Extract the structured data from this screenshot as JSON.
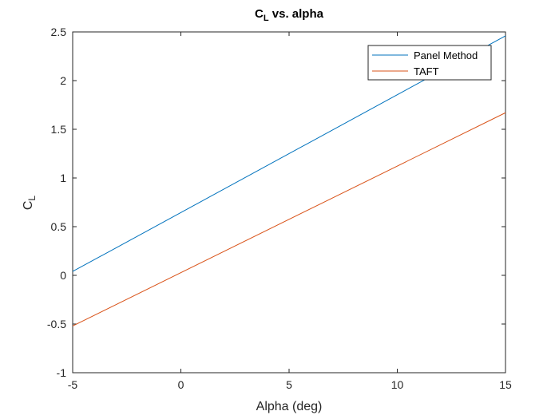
{
  "chart_data": {
    "type": "line",
    "title": {
      "main": "C",
      "sub": "L",
      "rest": " vs. alpha"
    },
    "xlabel": "Alpha (deg)",
    "ylabel": {
      "main": "C",
      "sub": "L"
    },
    "xlim": [
      -5,
      15
    ],
    "ylim": [
      -1,
      2.5
    ],
    "xticks": [
      -5,
      0,
      5,
      10,
      15
    ],
    "yticks": [
      -1,
      -0.5,
      0,
      0.5,
      1,
      1.5,
      2,
      2.5
    ],
    "xtick_labels": [
      "-5",
      "0",
      "5",
      "10",
      "15"
    ],
    "ytick_labels": [
      "-1",
      "-0.5",
      "0",
      "0.5",
      "1",
      "1.5",
      "2",
      "2.5"
    ],
    "grid": false,
    "legend_position": "top-right",
    "series": [
      {
        "name": "Panel Method",
        "color": "#0072BD",
        "x": [
          -5,
          15
        ],
        "y": [
          0.04,
          2.46
        ]
      },
      {
        "name": "TAFT",
        "color": "#D95319",
        "x": [
          -5,
          15
        ],
        "y": [
          -0.52,
          1.67
        ]
      }
    ]
  }
}
